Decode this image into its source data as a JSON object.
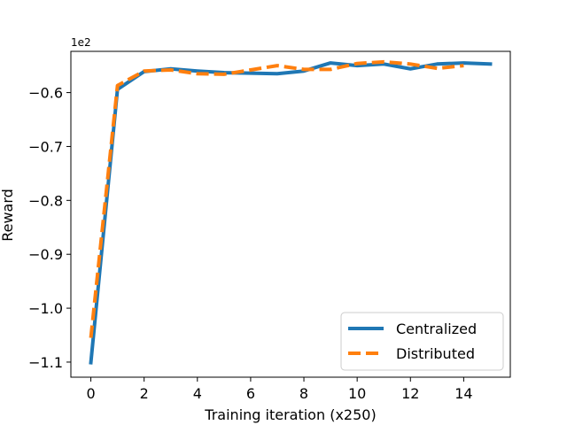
{
  "chart_data": {
    "type": "line",
    "xlabel": "Training iteration (x250)",
    "ylabel": "Reward",
    "y_offset_label": "1e2",
    "xlim": [
      -0.75,
      15.75
    ],
    "ylim": [
      -1.128,
      -0.5235
    ],
    "x_ticks": [
      0,
      2,
      4,
      6,
      8,
      10,
      12,
      14
    ],
    "x_tick_labels": [
      "0",
      "2",
      "4",
      "6",
      "8",
      "10",
      "12",
      "14"
    ],
    "y_ticks": [
      -1.1,
      -1.0,
      -0.9,
      -0.8,
      -0.7,
      -0.6
    ],
    "y_tick_labels": [
      "−1.1",
      "−1.0",
      "−0.9",
      "−0.8",
      "−0.7",
      "−0.6"
    ],
    "grid": false,
    "legend_position": "lower-right",
    "series": [
      {
        "name": "Centralized",
        "color": "#1f77b4",
        "style": "solid",
        "x": [
          0,
          1,
          2,
          3,
          4,
          5,
          6,
          7,
          8,
          9,
          10,
          11,
          12,
          13,
          14,
          15
        ],
        "values": [
          -1.101,
          -0.594,
          -0.561,
          -0.556,
          -0.56,
          -0.563,
          -0.564,
          -0.565,
          -0.56,
          -0.545,
          -0.55,
          -0.547,
          -0.556,
          -0.547,
          -0.545,
          -0.547
        ]
      },
      {
        "name": "Distributed",
        "color": "#ff7f0e",
        "style": "dashed",
        "x": [
          0,
          1,
          2,
          3,
          4,
          5,
          6,
          7,
          8,
          9,
          10,
          11,
          12,
          13,
          14
        ],
        "values": [
          -1.055,
          -0.587,
          -0.56,
          -0.558,
          -0.565,
          -0.566,
          -0.558,
          -0.55,
          -0.557,
          -0.557,
          -0.546,
          -0.543,
          -0.547,
          -0.555,
          -0.55
        ]
      }
    ]
  }
}
